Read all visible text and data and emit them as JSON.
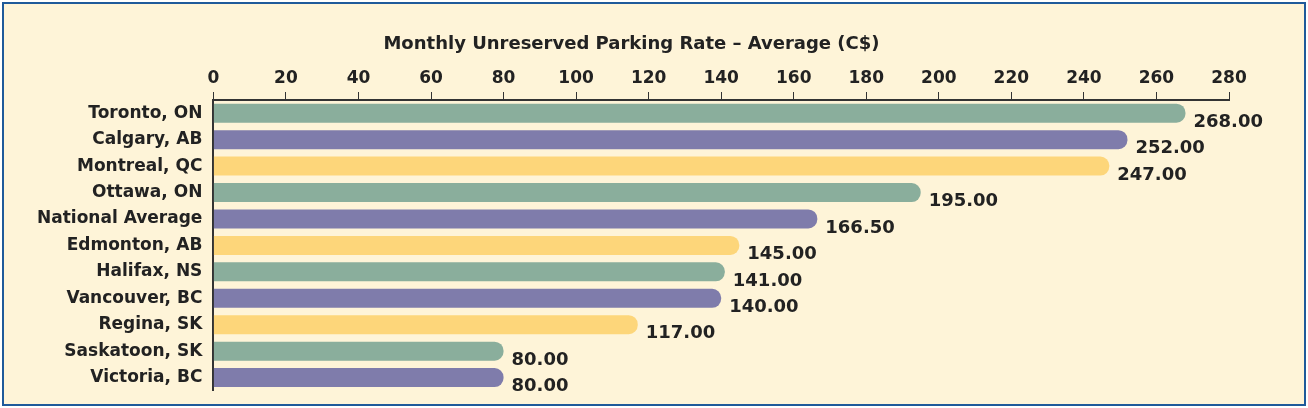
{
  "chart_data": {
    "type": "bar",
    "orientation": "horizontal",
    "title": "Monthly Unreserved Parking Rate – Average (C$)",
    "categories": [
      "Toronto, ON",
      "Calgary, AB",
      "Montreal, QC",
      "Ottawa, ON",
      "National Average",
      "Edmonton, AB",
      "Halifax, NS",
      "Vancouver, BC",
      "Regina, SK",
      "Saskatoon, SK",
      "Victoria, BC"
    ],
    "values": [
      268,
      252,
      247,
      195,
      166.5,
      145,
      141,
      140,
      117,
      80,
      80
    ],
    "colors": [
      "#8aae9c",
      "#7f7cab",
      "#fdd67a",
      "#8aae9c",
      "#7f7cab",
      "#fdd67a",
      "#8aae9c",
      "#7f7cab",
      "#fdd67a",
      "#8aae9c",
      "#7f7cab"
    ],
    "value_labels": [
      "268.00",
      "252.00",
      "247.00",
      "195.00",
      "166.50",
      "145.00",
      "141.00",
      "140.00",
      "117.00",
      "80.00",
      "80.00"
    ],
    "xlim": [
      0,
      280
    ],
    "xticks": [
      0,
      20,
      40,
      60,
      80,
      100,
      120,
      140,
      160,
      180,
      200,
      220,
      240,
      260,
      280
    ],
    "grid": false,
    "legend": false
  }
}
